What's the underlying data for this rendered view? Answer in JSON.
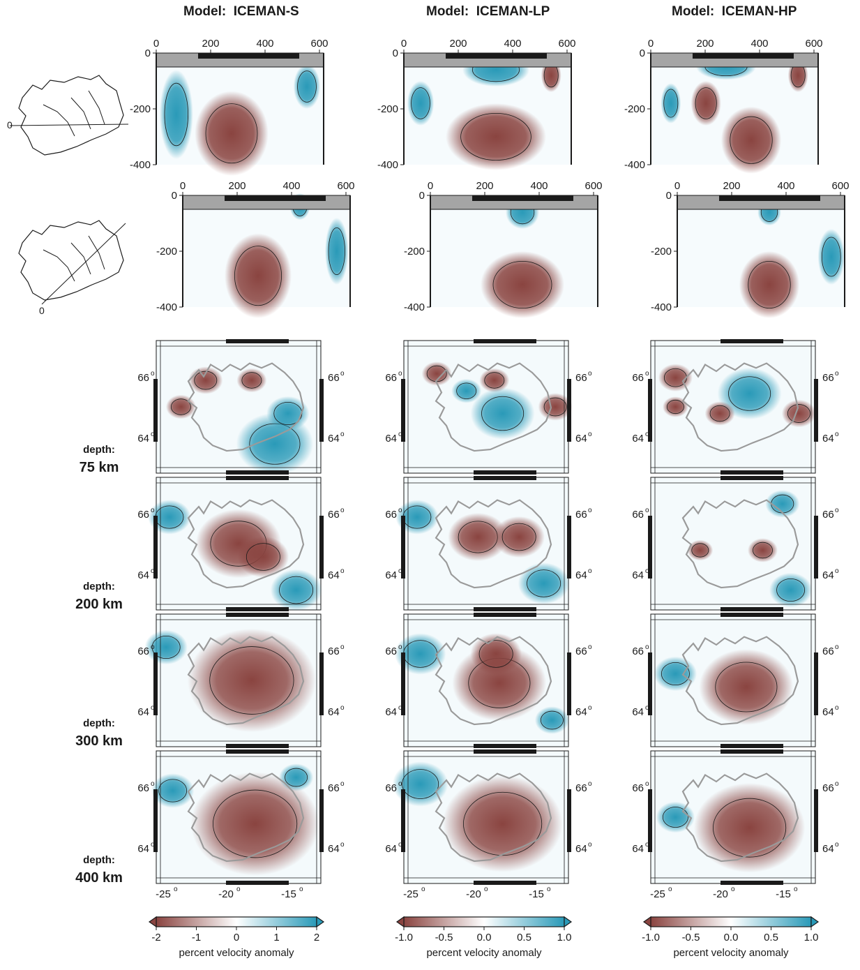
{
  "columns": [
    {
      "title_prefix": "Model:",
      "title_model": "ICEMAN-S",
      "colorbar": {
        "ticks": [
          "-2",
          "-1",
          "0",
          "1",
          "2"
        ],
        "label": "percent velocity  anomaly"
      }
    },
    {
      "title_prefix": "Model:",
      "title_model": "ICEMAN-LP",
      "colorbar": {
        "ticks": [
          "-1.0",
          "-0.5",
          "0.0",
          "0.5",
          "1.0"
        ],
        "label": "percent velocity  anomaly"
      }
    },
    {
      "title_prefix": "Model:",
      "title_model": "ICEMAN-HP",
      "colorbar": {
        "ticks": [
          "-1.0",
          "-0.5",
          "0.0",
          "0.5",
          "1.0"
        ],
        "label": "percent velocity  anomaly"
      }
    }
  ],
  "cross_sections": {
    "x_ticks": [
      "0",
      "200",
      "400",
      "600"
    ],
    "y_ticks": [
      "0",
      "-200",
      "-400"
    ],
    "profile_start_label": "0"
  },
  "depth_rows": [
    {
      "label": "depth:",
      "value": "75   km"
    },
    {
      "label": "depth:",
      "value": "200   km"
    },
    {
      "label": "depth:",
      "value": "300   km"
    },
    {
      "label": "depth:",
      "value": "400   km"
    }
  ],
  "map_axes": {
    "lat_ticks": [
      "66",
      "64"
    ],
    "lon_ticks": [
      "-25",
      "-20",
      "-15"
    ],
    "degree_symbol": "o"
  },
  "colors": {
    "slow": "#8a4440",
    "fast": "#2a9ab8",
    "neutral": "#ffffff",
    "coast": "#9a9a9a",
    "frame": "#1a1a1a",
    "topbar": "#a5a5a5"
  }
}
